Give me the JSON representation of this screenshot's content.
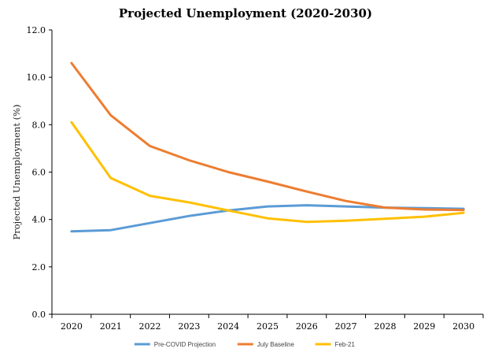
{
  "chart_data": {
    "type": "line",
    "title": "Projected Unemployment (2020-2030)",
    "xlabel": "",
    "ylabel": "Projected Unemployment (%)",
    "categories": [
      "2020",
      "2021",
      "2022",
      "2023",
      "2024",
      "2025",
      "2026",
      "2027",
      "2028",
      "2029",
      "2030"
    ],
    "ylim": [
      0,
      12
    ],
    "yticks": [
      "0.0",
      "2.0",
      "4.0",
      "6.0",
      "8.0",
      "10.0",
      "12.0"
    ],
    "grid": false,
    "legend_position": "bottom",
    "series": [
      {
        "name": "Pre-COVID Projection",
        "color": "#5b9bd5",
        "values": [
          3.5,
          3.55,
          3.85,
          4.15,
          4.38,
          4.55,
          4.6,
          4.55,
          4.5,
          4.48,
          4.45
        ]
      },
      {
        "name": "July Baseline",
        "color": "#ed7d31",
        "values": [
          10.6,
          8.4,
          7.1,
          6.5,
          6.0,
          5.6,
          5.18,
          4.78,
          4.5,
          4.42,
          4.4
        ]
      },
      {
        "name": "Feb-21",
        "color": "#ffc000",
        "values": [
          8.1,
          5.75,
          5.0,
          4.72,
          4.38,
          4.05,
          3.9,
          3.95,
          4.03,
          4.12,
          4.28
        ]
      }
    ]
  }
}
